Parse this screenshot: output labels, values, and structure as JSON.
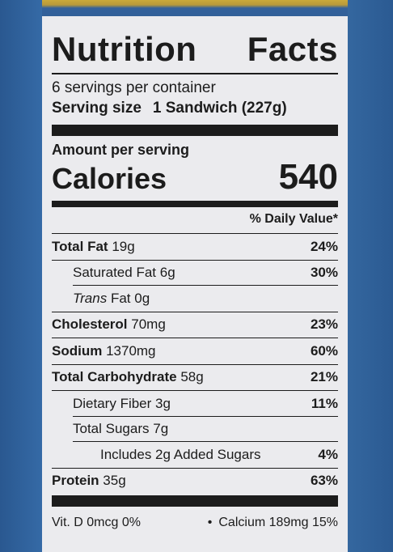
{
  "colors": {
    "background_blue": "#2f5e96",
    "label_bg": "#ebebee",
    "ink": "#1c1c1c"
  },
  "label": {
    "title_left": "Nutrition",
    "title_right": "Facts",
    "servings_per_container": "6 servings per container",
    "serving_size_label": "Serving size",
    "serving_size_value": "1 Sandwich (227g)",
    "amount_per_serving": "Amount per serving",
    "calories_label": "Calories",
    "calories_value": "540",
    "daily_value_header": "% Daily Value*",
    "nutrients": [
      {
        "name": "Total Fat",
        "amount": "19g",
        "dv": "24%"
      },
      {
        "name": "Saturated Fat",
        "amount": "6g",
        "dv": "30%"
      },
      {
        "name_italic": "Trans",
        "name": "Fat",
        "amount": "0g",
        "dv": ""
      },
      {
        "name": "Cholesterol",
        "amount": "70mg",
        "dv": "23%"
      },
      {
        "name": "Sodium",
        "amount": "1370mg",
        "dv": "60%"
      },
      {
        "name": "Total Carbohydrate",
        "amount": "58g",
        "dv": "21%"
      },
      {
        "name": "Dietary Fiber",
        "amount": "3g",
        "dv": "11%"
      },
      {
        "name": "Total Sugars",
        "amount": "7g",
        "dv": ""
      },
      {
        "name": "Includes 2g Added Sugars",
        "amount": "",
        "dv": "4%"
      },
      {
        "name": "Protein",
        "amount": "35g",
        "dv": "63%"
      }
    ],
    "vitamins": {
      "vit_d": "Vit. D 0mcg 0%",
      "bullet": "•",
      "calcium": "Calcium 189mg 15%"
    }
  }
}
